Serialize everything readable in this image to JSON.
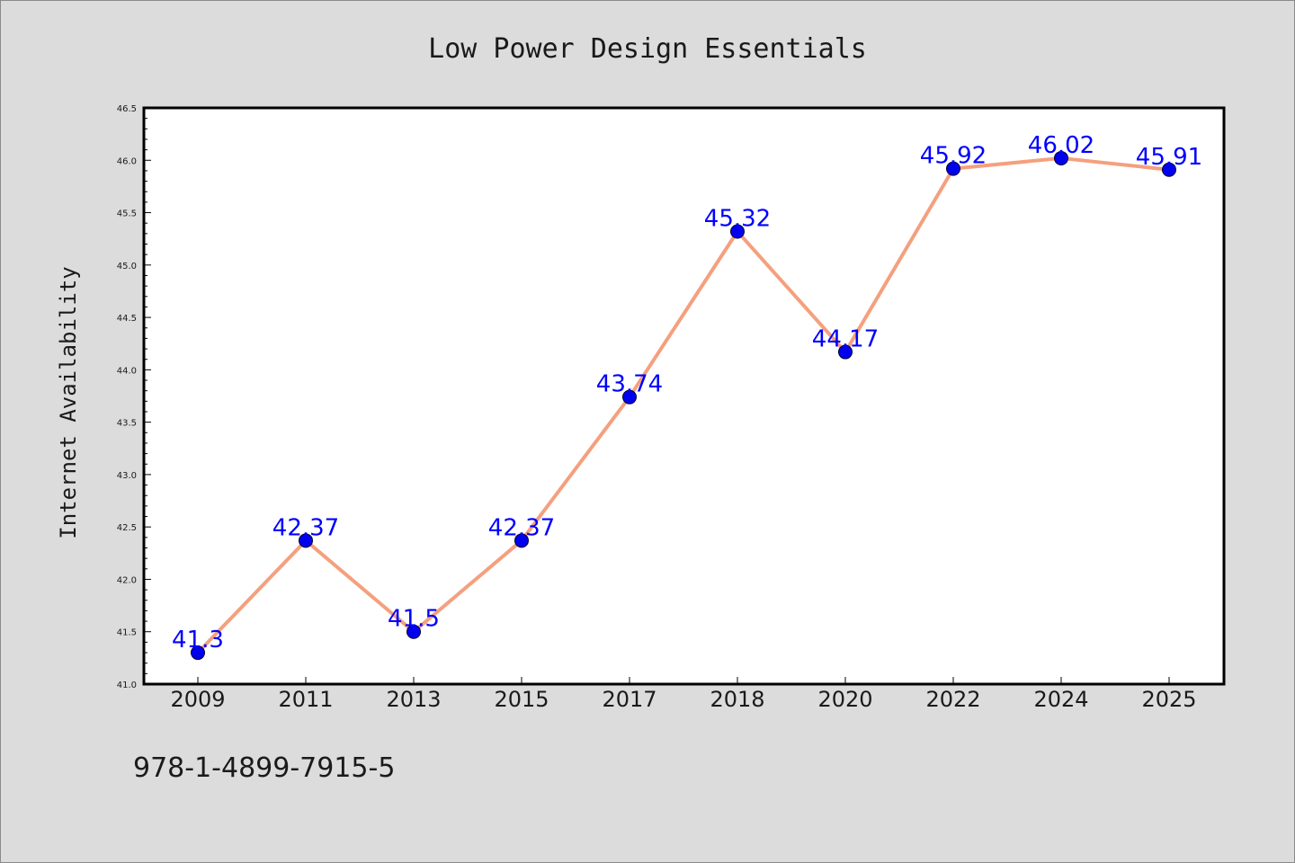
{
  "footer": {
    "isbn": "978-1-4899-7915-5"
  },
  "chart_data": {
    "type": "line",
    "title": "Low Power Design Essentials",
    "xlabel": "",
    "ylabel": "Internet Availability",
    "categories": [
      "2009",
      "2011",
      "2013",
      "2015",
      "2017",
      "2018",
      "2020",
      "2022",
      "2024",
      "2025"
    ],
    "series": [
      {
        "values": [
          41.3,
          42.37,
          41.5,
          42.37,
          43.74,
          45.32,
          44.17,
          45.92,
          46.02,
          45.91
        ],
        "labels": [
          "41.3",
          "42.37",
          "41.5",
          "42.37",
          "43.74",
          "45.32",
          "44.17",
          "45.92",
          "46.02",
          "45.91"
        ],
        "line_color": "#f4a07e",
        "marker_color": "#0000ee"
      }
    ],
    "ylim": [
      41.0,
      46.5
    ],
    "y_ticks": [
      "41.0",
      "41.5",
      "42.0",
      "42.5",
      "43.0",
      "43.5",
      "44.0",
      "44.5",
      "45.0",
      "45.5",
      "46.0",
      "46.5"
    ],
    "grid": false,
    "legend": "none",
    "plot_background": "#ffffff",
    "figure_background": "#dcdcdc"
  }
}
